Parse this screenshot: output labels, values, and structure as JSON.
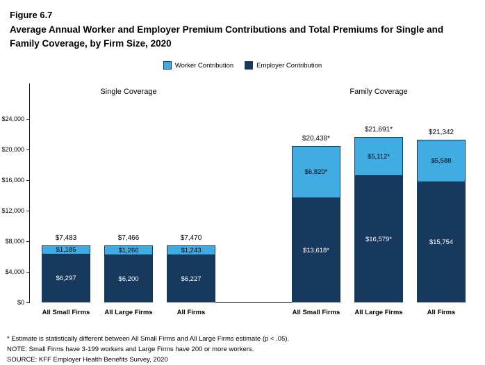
{
  "header": {
    "figure_label": "Figure 6.7",
    "title": "Average Annual Worker and Employer Premium Contributions and Total Premiums for Single and Family Coverage, by Firm Size, 2020"
  },
  "legend": [
    {
      "label": "Worker Contribution",
      "color": "#41ACE2"
    },
    {
      "label": "Employer Contribution",
      "color": "#17395E"
    }
  ],
  "footnotes": [
    "* Estimate is statistically different between All Small Firms and All Large Firms estimate (p < .05).",
    "NOTE: Small Firms have 3-199 workers and Large Firms have 200 or more workers.",
    "SOURCE: KFF Employer Health Benefits Survey, 2020"
  ],
  "chart_data": {
    "type": "bar",
    "stacked": true,
    "title": "Average Annual Worker and Employer Premium Contributions and Total Premiums for Single and Family Coverage, by Firm Size, 2020",
    "series": [
      "Worker Contribution",
      "Employer Contribution"
    ],
    "ylim": [
      0,
      24000
    ],
    "ytick_values": [
      0,
      4000,
      8000,
      12000,
      16000,
      20000,
      24000
    ],
    "ytick_labels": [
      "$0",
      "$4,000",
      "$8,000",
      "$12,000",
      "$16,000",
      "$20,000",
      "$24,000"
    ],
    "colors": {
      "worker": "#41ACE2",
      "employer": "#17395E"
    },
    "groups": [
      {
        "title": "Single Coverage",
        "bars": [
          {
            "category": "All Small Firms",
            "worker": 1185,
            "employer": 6297,
            "total": 7483,
            "worker_label": "$1,185",
            "employer_label": "$6,297",
            "total_label": "$7,483"
          },
          {
            "category": "All Large Firms",
            "worker": 1266,
            "employer": 6200,
            "total": 7466,
            "worker_label": "$1,266",
            "employer_label": "$6,200",
            "total_label": "$7,466"
          },
          {
            "category": "All Firms",
            "worker": 1243,
            "employer": 6227,
            "total": 7470,
            "worker_label": "$1,243",
            "employer_label": "$6,227",
            "total_label": "$7,470"
          }
        ]
      },
      {
        "title": "Family Coverage",
        "bars": [
          {
            "category": "All Small Firms",
            "worker": 6820,
            "employer": 13618,
            "total": 20438,
            "worker_label": "$6,820*",
            "employer_label": "$13,618*",
            "total_label": "$20,438*"
          },
          {
            "category": "All Large Firms",
            "worker": 5112,
            "employer": 16579,
            "total": 21691,
            "worker_label": "$5,112*",
            "employer_label": "$16,579*",
            "total_label": "$21,691*"
          },
          {
            "category": "All Firms",
            "worker": 5588,
            "employer": 15754,
            "total": 21342,
            "worker_label": "$5,588",
            "employer_label": "$15,754",
            "total_label": "$21,342"
          }
        ]
      }
    ]
  }
}
